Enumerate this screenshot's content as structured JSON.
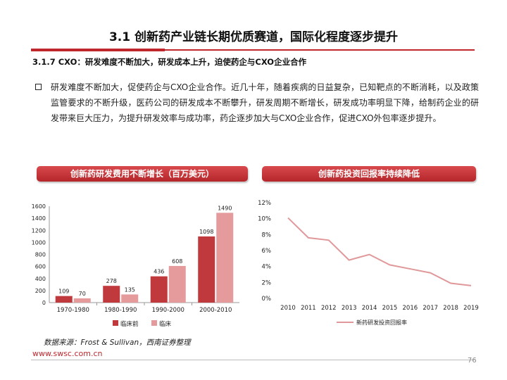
{
  "title": "3.1 创新药产业链长期优质赛道，国际化程度逐步提升",
  "subtitle": "3.1.7 CXO：研发难度不断加大，研发成本上升，迫使药企与CXO企业合作",
  "bullet_text": "研发难度不断加大，促使药企与CXO企业合作。近几十年，随着疾病的日益复杂，已知靶点的不断消耗，以及政策监管要求的不断升级，医药公司的研发成本不断攀升，研发周期不断增长，研发成功率明显下降，给制药企业的研发带来巨大压力，为提升研发效率与成功率，药企逐步加大与CXO企业合作，促进CXO外包率逐步提升。",
  "left_panel_title": "创新药研发费用不断增长（百万美元）",
  "right_panel_title": "创新药投资回报率持续降低",
  "source": "数据来源：Frost & Sullivan，西南证券整理",
  "website": "www.swsc.com.cn",
  "page_number": "76",
  "chart_data": [
    {
      "type": "bar",
      "categories": [
        "1970-1980",
        "1980-1990",
        "1990-2000",
        "2000-2010"
      ],
      "series": [
        {
          "name": "临床前",
          "values": [
            109,
            278,
            436,
            1098
          ],
          "color": "#c0393d"
        },
        {
          "name": "临床",
          "values": [
            70,
            135,
            608,
            1490
          ],
          "color": "#e59a9c"
        }
      ],
      "yticks": [
        0,
        200,
        400,
        600,
        800,
        1000,
        1200,
        1400,
        1600
      ],
      "ylim": [
        0,
        1600
      ],
      "legend": "bottom",
      "grid": false
    },
    {
      "type": "line",
      "x": [
        "2010",
        "2011",
        "2012",
        "2013",
        "2014",
        "2015",
        "2016",
        "2017",
        "2018",
        "2019"
      ],
      "series": [
        {
          "name": "新药研发投资回报率",
          "values": [
            10.1,
            7.6,
            7.3,
            4.8,
            5.5,
            4.2,
            3.7,
            3.2,
            1.9,
            1.6
          ],
          "color": "#e0989a"
        }
      ],
      "yticks": [
        "0%",
        "2%",
        "4%",
        "6%",
        "8%",
        "10%",
        "12%"
      ],
      "ylim": [
        0,
        12
      ],
      "legend": "bottom",
      "grid": false
    }
  ]
}
